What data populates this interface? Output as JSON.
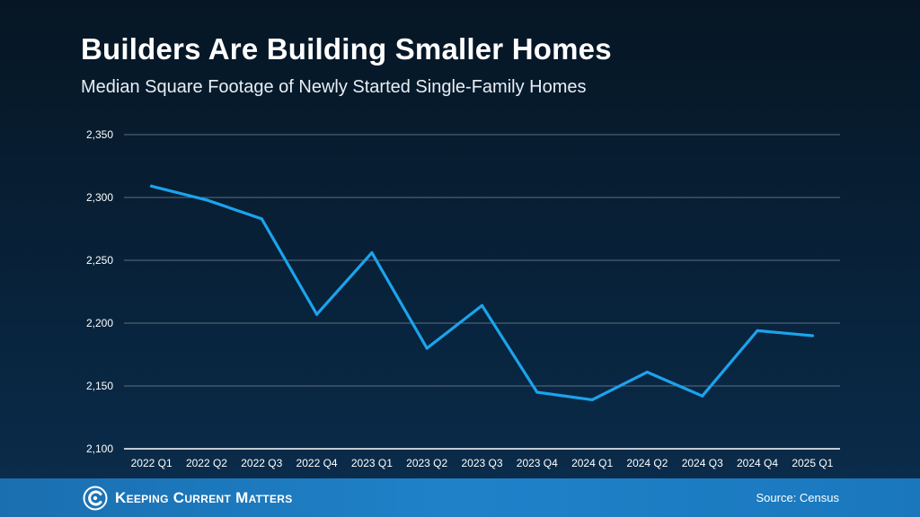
{
  "header": {
    "title": "Builders Are Building Smaller Homes",
    "subtitle": "Median Square Footage of Newly Started Single-Family Homes"
  },
  "footer": {
    "brand": "Keeping Current Matters",
    "source": "Source: Census"
  },
  "colors": {
    "line": "#1ca3ec",
    "grid": "#5a6f82",
    "axis": "#ffffff"
  },
  "chart_data": {
    "type": "line",
    "title": "Builders Are Building Smaller Homes",
    "subtitle": "Median Square Footage of Newly Started Single-Family Homes",
    "xlabel": "",
    "ylabel": "",
    "categories": [
      "2022 Q1",
      "2022 Q2",
      "2022 Q3",
      "2022 Q4",
      "2023 Q1",
      "2023 Q2",
      "2023 Q3",
      "2023 Q4",
      "2024 Q1",
      "2024 Q2",
      "2024 Q3",
      "2024 Q4",
      "2025 Q1"
    ],
    "series": [
      {
        "name": "Median Square Footage",
        "values": [
          2309,
          2298,
          2283,
          2207,
          2256,
          2180,
          2214,
          2145,
          2139,
          2161,
          2142,
          2194,
          2190
        ]
      }
    ],
    "ylim": [
      2100,
      2350
    ],
    "yticks": [
      2100,
      2150,
      2200,
      2250,
      2300,
      2350
    ],
    "ytick_labels": [
      "2,100",
      "2,150",
      "2,200",
      "2,250",
      "2,300",
      "2,350"
    ],
    "grid": true,
    "legend": "none"
  }
}
